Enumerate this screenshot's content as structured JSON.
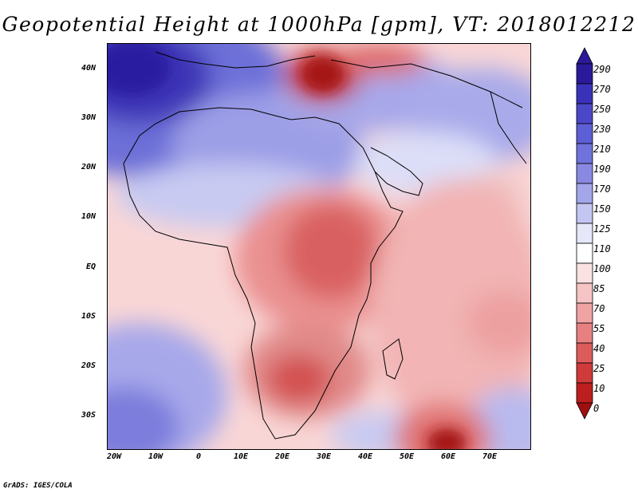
{
  "title": "Geopotential Height at 1000hPa [gpm], VT: 2018012212",
  "credit": "GrADS: IGES/COLA",
  "units": "gpm",
  "level_hpa": 1000,
  "valid_time": "2018012212",
  "lon_labels": [
    "20W",
    "10W",
    "0",
    "10E",
    "20E",
    "30E",
    "40E",
    "50E",
    "60E",
    "70E"
  ],
  "lat_labels": [
    "40N",
    "30N",
    "20N",
    "10N",
    "EQ",
    "10S",
    "20S",
    "30S"
  ],
  "colorbar": {
    "levels": [
      "290",
      "270",
      "250",
      "230",
      "210",
      "190",
      "170",
      "150",
      "125",
      "110",
      "100",
      "85",
      "70",
      "55",
      "40",
      "25",
      "10",
      "0"
    ],
    "colors": [
      "#2a1a9a",
      "#3a32b8",
      "#4b48c8",
      "#5d5fd4",
      "#7073db",
      "#8989e2",
      "#a4a6ea",
      "#c4c6f2",
      "#e6e8fa",
      "#ffffff",
      "#fbe2e2",
      "#f6c4c4",
      "#efa3a3",
      "#e78080",
      "#dc5c5c",
      "#cf3a3a",
      "#bd1f1f",
      "#a00f0f"
    ]
  }
}
